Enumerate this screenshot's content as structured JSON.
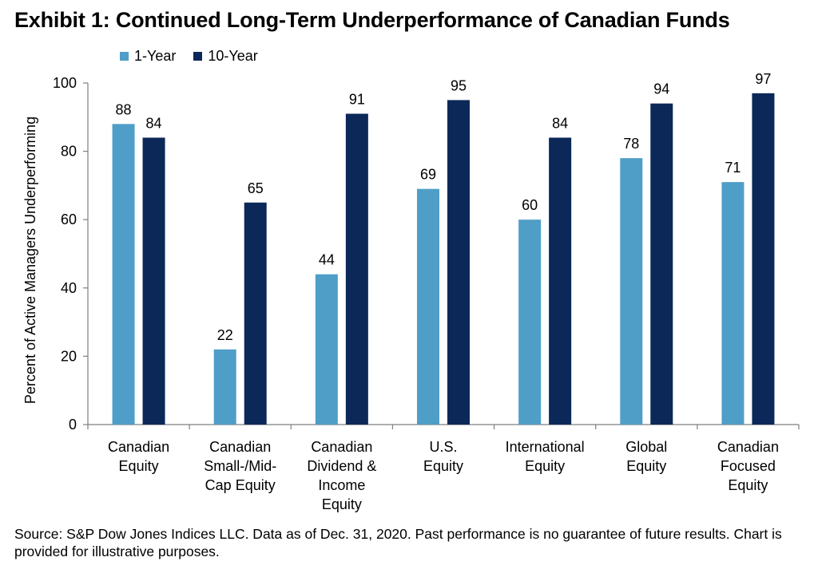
{
  "chart_data": {
    "type": "bar",
    "title": "Exhibit 1: Continued Long-Term Underperformance of Canadian Funds",
    "xlabel": "",
    "ylabel": "Percent of Active Managers Underperforming",
    "ylim": [
      0,
      100
    ],
    "yticks": [
      0,
      20,
      40,
      60,
      80,
      100
    ],
    "grid": false,
    "legend_position": "top-left",
    "categories": [
      [
        "Canadian",
        "Equity"
      ],
      [
        "Canadian",
        "Small-/Mid-",
        "Cap Equity"
      ],
      [
        "Canadian",
        "Dividend &",
        "Income",
        "Equity"
      ],
      [
        "U.S.",
        "Equity"
      ],
      [
        "International",
        "Equity"
      ],
      [
        "Global",
        "Equity"
      ],
      [
        "Canadian",
        "Focused",
        "Equity"
      ]
    ],
    "series": [
      {
        "name": "1-Year",
        "color": "#4f9ec8",
        "values": [
          88,
          22,
          44,
          69,
          60,
          78,
          71
        ]
      },
      {
        "name": "10-Year",
        "color": "#0b2859",
        "values": [
          84,
          65,
          91,
          95,
          84,
          94,
          97
        ]
      }
    ]
  },
  "source_note": "Source: S&P Dow Jones Indices LLC.  Data as of Dec. 31, 2020.  Past performance is no guarantee of future results.  Chart is provided for illustrative purposes."
}
